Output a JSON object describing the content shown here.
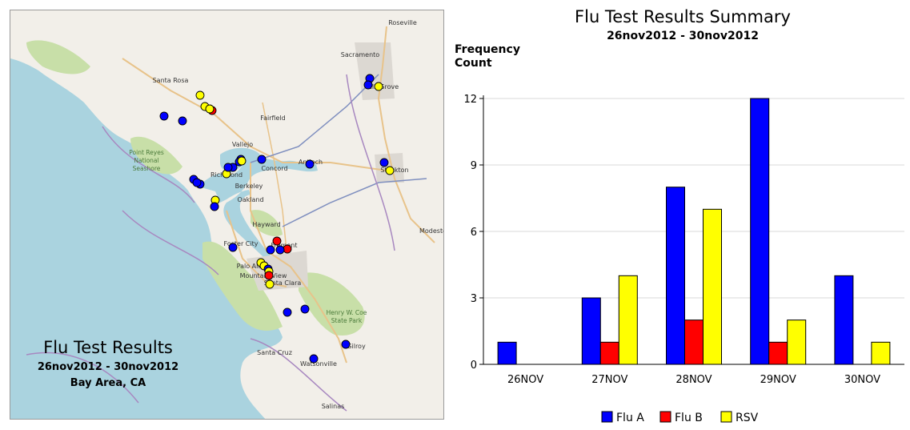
{
  "map": {
    "title": "Flu Test Results",
    "date_range": "26nov2012 - 30nov2012",
    "region": "Bay Area, CA",
    "colors": {
      "water": "#aad3df",
      "land": "#f2efe9",
      "park": "#c8dfa8",
      "urban": "#dcd8d2",
      "road": "#e8c38a",
      "highway": "#7f8fbf",
      "boundary": "#a888c0"
    },
    "place_labels": [
      {
        "key": "roseville",
        "text": "Roseville"
      },
      {
        "key": "sacramento",
        "text": "Sacramento"
      },
      {
        "key": "santa_rosa",
        "text": "Santa Rosa"
      },
      {
        "key": "elk_grove",
        "text": "Elk Grove"
      },
      {
        "key": "fairfield",
        "text": "Fairfield"
      },
      {
        "key": "vallejo",
        "text": "Vallejo"
      },
      {
        "key": "concord",
        "text": "Concord"
      },
      {
        "key": "antioch",
        "text": "Antioch"
      },
      {
        "key": "stockton",
        "text": "Stockton"
      },
      {
        "key": "point_reyes",
        "text": "Point Reyes National Seashore"
      },
      {
        "key": "richmond",
        "text": "Richmond"
      },
      {
        "key": "berkeley",
        "text": "Berkeley"
      },
      {
        "key": "oakland",
        "text": "Oakland"
      },
      {
        "key": "hayward",
        "text": "Hayward"
      },
      {
        "key": "foster_city",
        "text": "Foster City"
      },
      {
        "key": "fremont",
        "text": "Fremont"
      },
      {
        "key": "palo_alto",
        "text": "Palo Alto"
      },
      {
        "key": "mountain_view",
        "text": "Mountain View"
      },
      {
        "key": "santa_clara",
        "text": "Santa Clara"
      },
      {
        "key": "modesto",
        "text": "Modesto"
      },
      {
        "key": "henry_coe",
        "text": "Henry W. Coe State Park"
      },
      {
        "key": "santa_cruz",
        "text": "Santa Cruz"
      },
      {
        "key": "watsonville",
        "text": "Watsonville"
      },
      {
        "key": "gilroy",
        "text": "Gilroy"
      },
      {
        "key": "salinas",
        "text": "Salinas"
      }
    ],
    "test_markers": [
      {
        "type": "Flu A"
      },
      {
        "type": "Flu A"
      },
      {
        "type": "RSV"
      },
      {
        "type": "RSV"
      },
      {
        "type": "RSV"
      },
      {
        "type": "Flu A"
      },
      {
        "type": "Flu B"
      },
      {
        "type": "RSV"
      },
      {
        "type": "Flu A"
      },
      {
        "type": "Flu A"
      },
      {
        "type": "Flu A"
      },
      {
        "type": "Flu A"
      },
      {
        "type": "RSV"
      },
      {
        "type": "RSV"
      },
      {
        "type": "Flu A"
      },
      {
        "type": "Flu A"
      },
      {
        "type": "Flu A"
      },
      {
        "type": "Flu A"
      },
      {
        "type": "Flu A"
      },
      {
        "type": "Flu A"
      },
      {
        "type": "Flu A"
      },
      {
        "type": "RSV"
      },
      {
        "type": "RSV"
      },
      {
        "type": "Flu A"
      },
      {
        "type": "Flu B"
      },
      {
        "type": "Flu A"
      },
      {
        "type": "Flu B"
      },
      {
        "type": "Flu A"
      },
      {
        "type": "Flu A"
      },
      {
        "type": "RSV"
      },
      {
        "type": "RSV"
      },
      {
        "type": "Flu A"
      },
      {
        "type": "RSV"
      },
      {
        "type": "Flu B"
      },
      {
        "type": "RSV"
      },
      {
        "type": "Flu A"
      },
      {
        "type": "Flu A"
      },
      {
        "type": "Flu A"
      },
      {
        "type": "Flu A"
      }
    ]
  },
  "chart_data": {
    "type": "bar",
    "title": "Flu Test Results Summary",
    "subtitle": "26nov2012 - 30nov2012",
    "ylabel": "Frequency Count",
    "xlabel": "",
    "categories": [
      "26NOV",
      "27NOV",
      "28NOV",
      "29NOV",
      "30NOV"
    ],
    "series": [
      {
        "name": "Flu A",
        "color": "#0000ff",
        "values": [
          1,
          3,
          8,
          12,
          4
        ]
      },
      {
        "name": "Flu B",
        "color": "#ff0000",
        "values": [
          0,
          1,
          2,
          1,
          0
        ]
      },
      {
        "name": "RSV",
        "color": "#ffff00",
        "values": [
          0,
          4,
          7,
          2,
          1
        ]
      }
    ],
    "ylim": [
      0,
      12
    ],
    "yticks": [
      0,
      3,
      6,
      9,
      12
    ],
    "grid": true,
    "legend": "bottom"
  }
}
